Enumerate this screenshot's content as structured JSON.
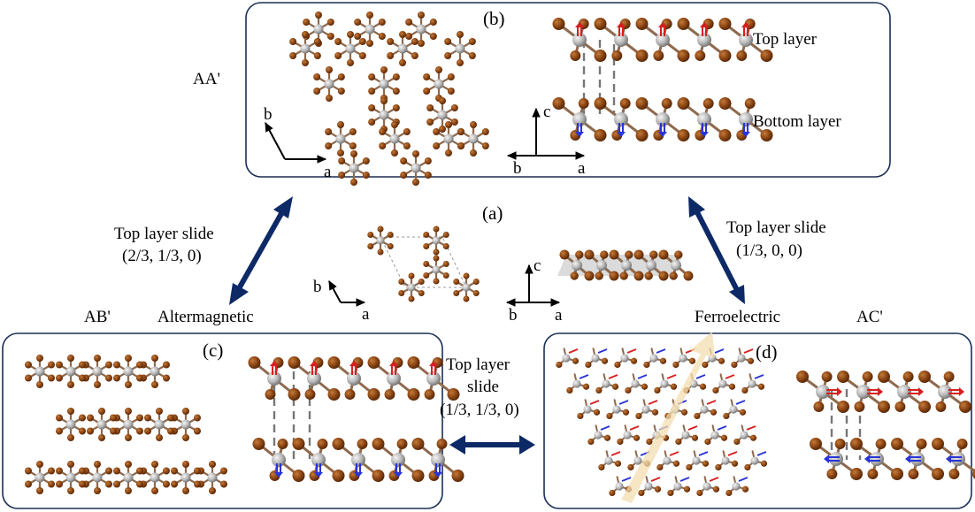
{
  "panels": {
    "a": {
      "label": "(a)",
      "axis_b": "b",
      "axis_a": "a",
      "side_axis_c": "c",
      "side_axis_b": "b",
      "side_axis_a": "a"
    },
    "b": {
      "label": "(b)",
      "stacking": "AA'",
      "axis_b": "b",
      "axis_a": "a",
      "side_axis_c": "c",
      "side_axis_b": "b",
      "side_axis_a": "a",
      "top_layer": "Top layer",
      "bottom_layer": "Bottom layer"
    },
    "c": {
      "label": "(c)",
      "stacking": "AB'",
      "phase": "Altermagnetic"
    },
    "d": {
      "label": "(d)",
      "stacking": "AC'",
      "phase": "Ferroelectric"
    }
  },
  "transitions": {
    "to_b_left": {
      "line1": "Top layer slide",
      "line2": "(2/3, 1/3, 0)"
    },
    "to_b_right": {
      "line1": "Top layer slide",
      "line2": "(1/3, 0, 0)"
    },
    "c_to_d": {
      "line1": "Top layer",
      "line2": "slide",
      "line3": "(1/3, 1/3, 0)"
    }
  },
  "colors": {
    "frame": "#1b2e55",
    "arrow": "#0d2a66",
    "halogen": "#8b4513",
    "metal": "#b8b8b8",
    "spin_up": "#d62020",
    "spin_down": "#2a35d6",
    "slide_arrow": "#f3deb0"
  }
}
